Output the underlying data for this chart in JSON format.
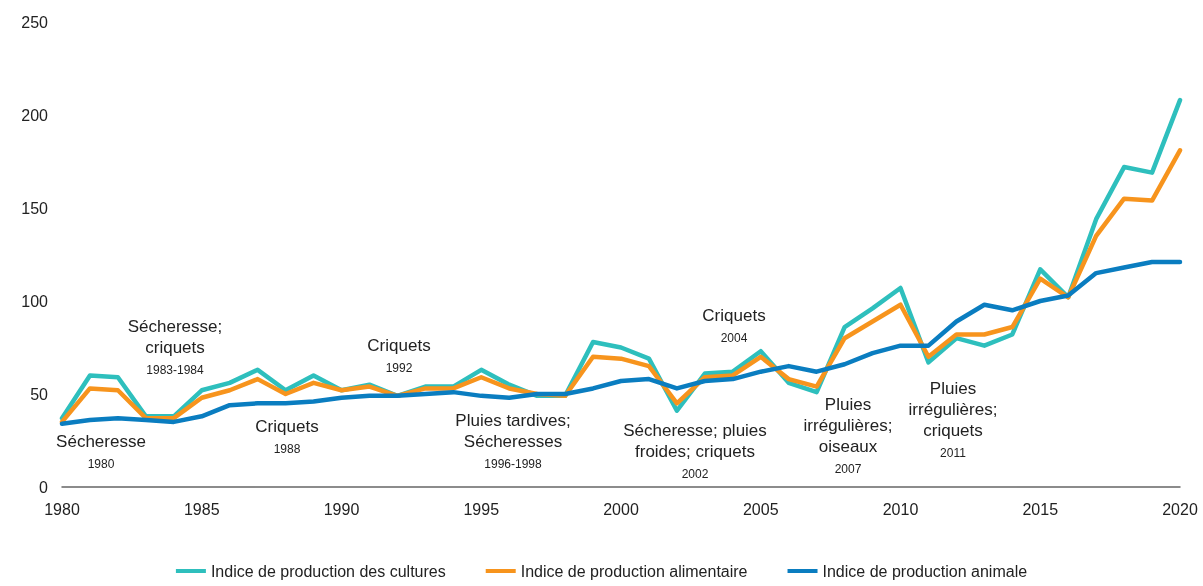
{
  "chart_data": {
    "type": "line",
    "xlim": [
      1980,
      2020
    ],
    "xticks": [
      1980,
      1985,
      1990,
      1995,
      2000,
      2005,
      2010,
      2015,
      2020
    ],
    "ylim": [
      0,
      250
    ],
    "yticks": [
      0,
      50,
      100,
      150,
      200,
      250
    ],
    "grid": false,
    "legend": "bottom",
    "marker": "none",
    "line_style": "solid",
    "x": [
      1980,
      1981,
      1982,
      1983,
      1984,
      1985,
      1986,
      1987,
      1988,
      1989,
      1990,
      1991,
      1992,
      1993,
      1994,
      1995,
      1996,
      1997,
      1998,
      1999,
      2000,
      2001,
      2002,
      2003,
      2004,
      2005,
      2006,
      2007,
      2008,
      2009,
      2010,
      2011,
      2012,
      2013,
      2014,
      2015,
      2016,
      2017,
      2018,
      2019,
      2020
    ],
    "series": [
      {
        "name": "Indice de production des cultures",
        "color": "#2ebfbd",
        "values": [
          37,
          60,
          59,
          38,
          38,
          52,
          56,
          63,
          52,
          60,
          52,
          55,
          49,
          54,
          54,
          63,
          55,
          49,
          49,
          78,
          75,
          69,
          41,
          61,
          62,
          73,
          56,
          51,
          86,
          96,
          107,
          67,
          80,
          76,
          82,
          117,
          102,
          144,
          172,
          169,
          208
        ]
      },
      {
        "name": "Indice de production alimentaire",
        "color": "#f7941d",
        "values": [
          35,
          53,
          52,
          37,
          37,
          48,
          52,
          58,
          50,
          56,
          52,
          54,
          49,
          53,
          53,
          59,
          53,
          50,
          49,
          70,
          69,
          65,
          45,
          59,
          60,
          70,
          58,
          54,
          80,
          89,
          98,
          70,
          82,
          82,
          86,
          112,
          102,
          135,
          155,
          154,
          181
        ]
      },
      {
        "name": "Indice de production animale",
        "color": "#0a7dc0",
        "values": [
          34,
          36,
          37,
          36,
          35,
          38,
          44,
          45,
          45,
          46,
          48,
          49,
          49,
          50,
          51,
          49,
          48,
          50,
          50,
          53,
          57,
          58,
          53,
          57,
          58,
          62,
          65,
          62,
          66,
          72,
          76,
          76,
          89,
          98,
          95,
          100,
          103,
          115,
          118,
          121,
          121
        ]
      }
    ],
    "annotations": [
      "Sécheresse\n1980",
      "Sécheresse;\ncriquets\n1983-1984",
      "Criquets\n1988",
      "Criquets\n1992",
      "Pluies tardives;\nSécheresses\n1996-1998",
      "Sécheresse; pluies\nfroides; criquets\n2002",
      "Criquets\n2004",
      "Pluies\nirrégulières;\noiseaux\n2007",
      "Pluies\nirrégulières;\ncriquets\n2011"
    ]
  }
}
